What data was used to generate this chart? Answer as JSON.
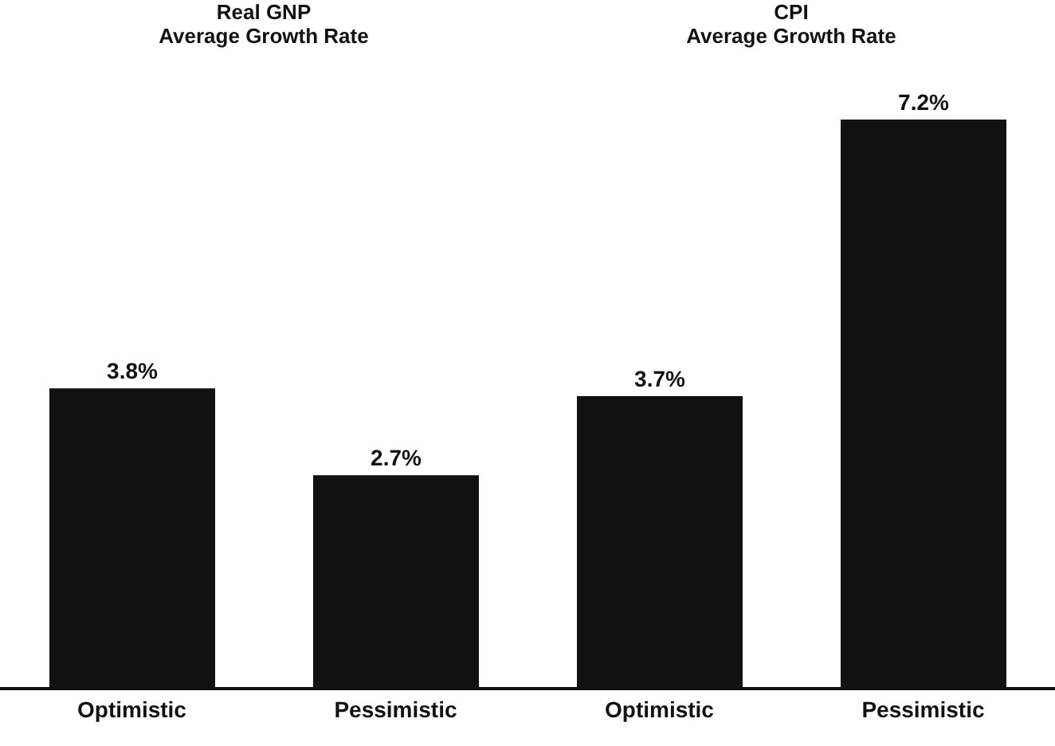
{
  "chart_data": [
    {
      "type": "bar",
      "title": "Real GNP",
      "subtitle": "Average Growth Rate",
      "categories": [
        "Optimistic",
        "Pessimistic"
      ],
      "values": [
        3.8,
        2.7
      ],
      "value_labels": [
        "3.8%",
        "2.7%"
      ],
      "color": "#111111",
      "tick_labels": "x",
      "grid": false,
      "legend": false
    },
    {
      "type": "bar",
      "title": "CPI",
      "subtitle": "Average Growth Rate",
      "categories": [
        "Optimistic",
        "Pessimistic"
      ],
      "values": [
        3.7,
        7.2
      ],
      "value_labels": [
        "3.7%",
        "7.2%"
      ],
      "color": "#111111",
      "tick_labels": "x",
      "grid": false,
      "legend": false
    }
  ]
}
